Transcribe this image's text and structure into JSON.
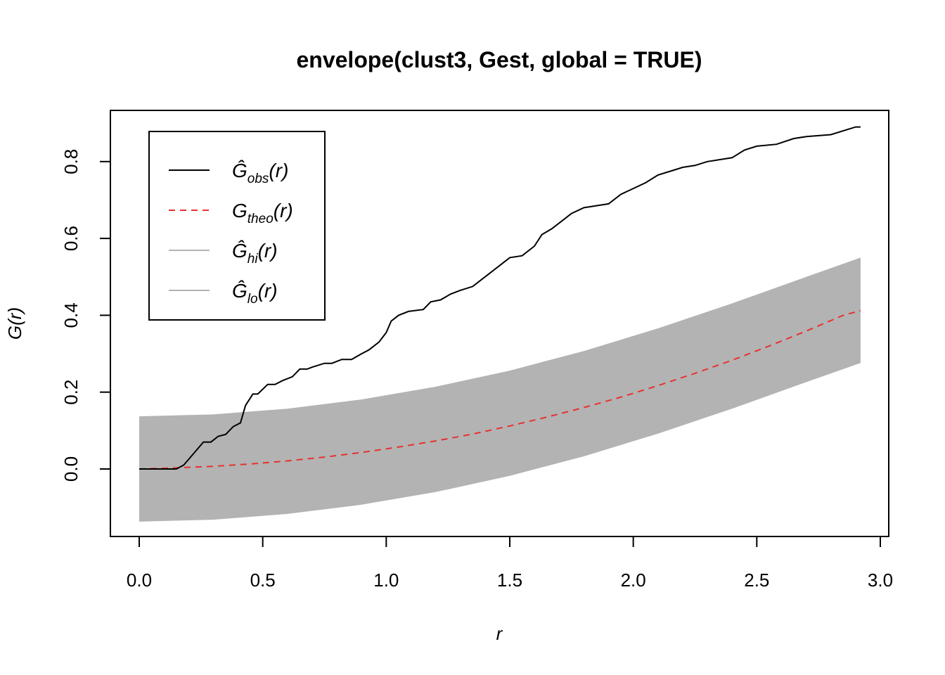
{
  "chart_data": {
    "type": "line",
    "title": "envelope(clust3, Gest, global = TRUE)",
    "xlabel": "r",
    "ylabel": "G(r)",
    "xlim": [
      0,
      3.0
    ],
    "ylim": [
      -0.14,
      0.9
    ],
    "x_ticks": [
      "0.0",
      "0.5",
      "1.0",
      "1.5",
      "2.0",
      "2.5",
      "3.0"
    ],
    "y_ticks": [
      "0.0",
      "0.2",
      "0.4",
      "0.6",
      "0.8"
    ],
    "legend_position": "top-left",
    "grid": false,
    "colors": {
      "observed": "#000000",
      "theoretical": "#e8312f",
      "envelope": "#b3b3b3"
    },
    "series": [
      {
        "name": "Ĝobs(r)",
        "style": "solid",
        "x": [
          0,
          0.15,
          0.18,
          0.22,
          0.26,
          0.29,
          0.32,
          0.35,
          0.38,
          0.41,
          0.43,
          0.46,
          0.48,
          0.52,
          0.55,
          0.58,
          0.62,
          0.65,
          0.68,
          0.7,
          0.75,
          0.78,
          0.82,
          0.86,
          0.9,
          0.93,
          0.97,
          1.0,
          1.02,
          1.05,
          1.09,
          1.15,
          1.18,
          1.22,
          1.26,
          1.3,
          1.35,
          1.38,
          1.42,
          1.46,
          1.5,
          1.55,
          1.6,
          1.63,
          1.67,
          1.72,
          1.75,
          1.8,
          1.85,
          1.9,
          1.95,
          2.0,
          2.05,
          2.1,
          2.15,
          2.2,
          2.25,
          2.3,
          2.4,
          2.45,
          2.5,
          2.58,
          2.65,
          2.7,
          2.8,
          2.9,
          2.92
        ],
        "y": [
          0,
          0,
          0.01,
          0.04,
          0.07,
          0.07,
          0.085,
          0.09,
          0.11,
          0.12,
          0.165,
          0.195,
          0.195,
          0.22,
          0.22,
          0.23,
          0.24,
          0.26,
          0.26,
          0.265,
          0.275,
          0.275,
          0.285,
          0.285,
          0.3,
          0.31,
          0.33,
          0.355,
          0.385,
          0.4,
          0.41,
          0.415,
          0.435,
          0.44,
          0.455,
          0.465,
          0.475,
          0.49,
          0.51,
          0.53,
          0.55,
          0.555,
          0.58,
          0.61,
          0.625,
          0.65,
          0.665,
          0.68,
          0.685,
          0.69,
          0.715,
          0.73,
          0.745,
          0.765,
          0.775,
          0.785,
          0.79,
          0.8,
          0.81,
          0.83,
          0.84,
          0.845,
          0.86,
          0.865,
          0.87,
          0.89,
          0.89
        ]
      },
      {
        "name": "Gtheo(r)",
        "style": "dashed",
        "x": [
          0,
          0.15,
          0.3,
          0.45,
          0.6,
          0.75,
          0.9,
          1.05,
          1.2,
          1.35,
          1.5,
          1.65,
          1.8,
          1.95,
          2.1,
          2.25,
          2.4,
          2.55,
          2.7,
          2.85,
          2.92
        ],
        "y": [
          0,
          0.003,
          0.007,
          0.013,
          0.021,
          0.031,
          0.043,
          0.057,
          0.073,
          0.091,
          0.112,
          0.135,
          0.16,
          0.187,
          0.217,
          0.249,
          0.283,
          0.32,
          0.359,
          0.4,
          0.412
        ]
      },
      {
        "name": "Ĝhi(r)",
        "style": "band-upper",
        "x": [
          0,
          0.3,
          0.6,
          0.9,
          1.2,
          1.5,
          1.8,
          2.1,
          2.4,
          2.7,
          2.92
        ],
        "y": [
          0.137,
          0.142,
          0.157,
          0.181,
          0.214,
          0.256,
          0.307,
          0.366,
          0.431,
          0.5,
          0.55
        ]
      },
      {
        "name": "Ĝlo(r)",
        "style": "band-lower",
        "x": [
          0,
          0.3,
          0.6,
          0.9,
          1.2,
          1.5,
          1.8,
          2.1,
          2.4,
          2.7,
          2.92
        ],
        "y": [
          -0.137,
          -0.132,
          -0.117,
          -0.093,
          -0.06,
          -0.018,
          0.033,
          0.092,
          0.157,
          0.226,
          0.276
        ]
      }
    ],
    "legend": [
      {
        "base": "Ĝ",
        "sub": "obs",
        "suffix": "(r)"
      },
      {
        "base": "G",
        "sub": "theo",
        "suffix": "(r)"
      },
      {
        "base": "Ĝ",
        "sub": "hi",
        "suffix": "(r)"
      },
      {
        "base": "Ĝ",
        "sub": "lo",
        "suffix": "(r)"
      }
    ]
  }
}
